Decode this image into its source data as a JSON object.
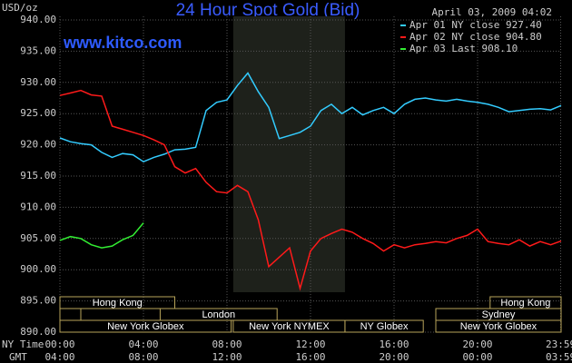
{
  "chart_data": {
    "type": "line",
    "title": "24 Hour Spot Gold (Bid)",
    "subtitle": "April 03, 2009 04:02",
    "watermark": "www.kitco.com",
    "y_label": "USD/oz",
    "x_label": "NY Time",
    "x2_label": "GMT",
    "x": [
      0,
      0.5,
      1,
      1.5,
      2,
      2.5,
      3,
      3.5,
      4,
      4.5,
      5,
      5.5,
      6,
      6.5,
      7,
      7.5,
      8,
      8.5,
      9,
      9.5,
      10,
      10.5,
      11,
      11.5,
      12,
      12.5,
      13,
      13.5,
      14,
      14.5,
      15,
      15.5,
      16,
      16.5,
      17,
      17.5,
      18,
      18.5,
      19,
      19.5,
      20,
      20.5,
      21,
      21.5,
      22,
      22.5,
      23,
      23.5,
      24
    ],
    "series": [
      {
        "name": "Apr 01 NY close 927.40",
        "color": "#33ccff",
        "values": [
          921.1,
          920.5,
          920.2,
          920.0,
          918.8,
          918.0,
          918.6,
          918.4,
          917.3,
          918.0,
          918.5,
          919.2,
          919.3,
          919.6,
          925.5,
          926.8,
          927.2,
          929.5,
          931.5,
          928.5,
          926.0,
          921.0,
          921.5,
          922.0,
          923.0,
          925.5,
          926.5,
          925.0,
          926.0,
          924.8,
          925.5,
          926.0,
          925.0,
          926.5,
          927.3,
          927.5,
          927.2,
          927.0,
          927.3,
          927.0,
          926.8,
          926.5,
          926.0,
          925.3,
          925.5,
          925.7,
          925.8,
          925.6,
          926.3
        ]
      },
      {
        "name": "Apr 02 NY close 904.80",
        "color": "#ff1a1a",
        "values": [
          927.9,
          928.3,
          928.7,
          928.0,
          927.8,
          923.0,
          922.5,
          922.0,
          921.5,
          920.8,
          920.0,
          916.5,
          915.5,
          916.2,
          914.0,
          912.5,
          912.3,
          913.5,
          912.5,
          908.0,
          900.5,
          902.0,
          903.5,
          897.0,
          903.0,
          905.0,
          905.8,
          906.5,
          906.0,
          905.0,
          904.2,
          903.0,
          904.0,
          903.5,
          904.0,
          904.2,
          904.5,
          904.3,
          905.0,
          905.5,
          906.5,
          904.5,
          904.2,
          904.0,
          904.8,
          903.8,
          904.5,
          904.0,
          904.6
        ]
      },
      {
        "name": "Apr 03 Last 908.10",
        "color": "#33ee33",
        "values": [
          904.7,
          905.3,
          905.0,
          904.0,
          903.5,
          903.8,
          904.8,
          905.5,
          907.5,
          null,
          null,
          null,
          null,
          null,
          null,
          null,
          null,
          null,
          null,
          null,
          null,
          null,
          null,
          null,
          null,
          null,
          null,
          null,
          null,
          null,
          null,
          null,
          null,
          null,
          null,
          null,
          null,
          null,
          null,
          null,
          null,
          null,
          null,
          null,
          null,
          null,
          null,
          null,
          null
        ]
      }
    ],
    "xlim": [
      0,
      24
    ],
    "xticks": [
      {
        "value": 0,
        "label": "00:00"
      },
      {
        "value": 4,
        "label": "04:00"
      },
      {
        "value": 8,
        "label": "08:00"
      },
      {
        "value": 12,
        "label": "12:00"
      },
      {
        "value": 16,
        "label": "16:00"
      },
      {
        "value": 20,
        "label": "20:00"
      },
      {
        "value": 23.98,
        "label": "23:59"
      }
    ],
    "x2ticks": [
      {
        "value": 0,
        "label": "04:00"
      },
      {
        "value": 4,
        "label": "08:00"
      },
      {
        "value": 8,
        "label": "12:00"
      },
      {
        "value": 12,
        "label": "16:00"
      },
      {
        "value": 16,
        "label": "20:00"
      },
      {
        "value": 20,
        "label": "00:00"
      },
      {
        "value": 23.98,
        "label": "03:59"
      }
    ],
    "ylim": [
      890,
      940
    ],
    "yticks": [
      {
        "value": 890,
        "label": "890.00"
      },
      {
        "value": 895,
        "label": "895.00"
      },
      {
        "value": 900,
        "label": "900.00"
      },
      {
        "value": 905,
        "label": "905.00"
      },
      {
        "value": 910,
        "label": "910.00"
      },
      {
        "value": 915,
        "label": "915.00"
      },
      {
        "value": 920,
        "label": "920.00"
      },
      {
        "value": 925,
        "label": "925.00"
      },
      {
        "value": 930,
        "label": "930.00"
      },
      {
        "value": 935,
        "label": "935.00"
      },
      {
        "value": 940,
        "label": "940.00"
      }
    ],
    "grid": true,
    "shaded_xrange": [
      8.3,
      13.65
    ],
    "session_rows": [
      [
        {
          "label": "Hong Kong",
          "start": 0,
          "end": 5.5
        },
        {
          "label": "Hong Kong",
          "start": 20.6,
          "end": 24
        }
      ],
      [
        {
          "start": 0,
          "end": 1
        },
        {
          "label": "London",
          "start": 4.8,
          "end": 10.4
        },
        {
          "label": "Sydney",
          "start": 18,
          "end": 24
        }
      ],
      [
        {
          "label": "New York Globex",
          "start": 0,
          "end": 8.2
        },
        {
          "label": "New York NYMEX",
          "start": 8.3,
          "end": 13.65
        },
        {
          "label": "NY Globex",
          "start": 13.65,
          "end": 17.4
        },
        {
          "label": "New York Globex",
          "start": 18,
          "end": 24
        }
      ]
    ]
  }
}
